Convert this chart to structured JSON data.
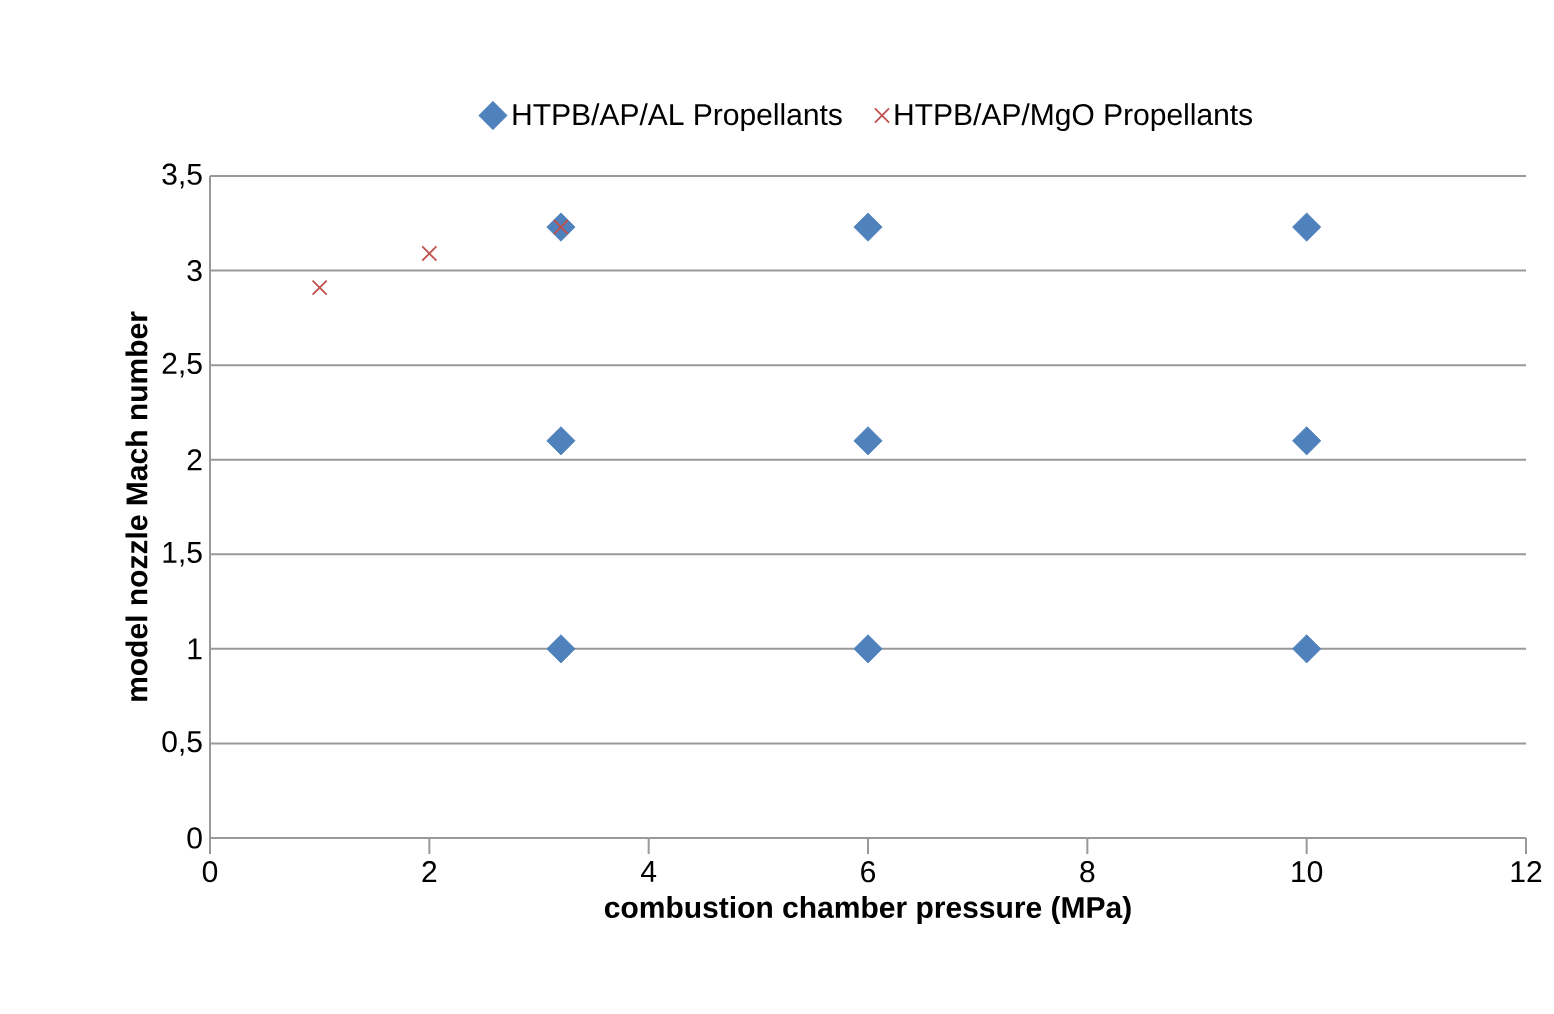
{
  "chart_data": {
    "type": "scatter",
    "xlabel": "combustion chamber pressure (MPa)",
    "ylabel": "model nozzle Mach number",
    "xlim": [
      0,
      12
    ],
    "xticks": [
      0,
      2,
      4,
      6,
      8,
      10,
      12
    ],
    "ylim": [
      0,
      3.5
    ],
    "yticks": [
      0,
      {
        "value": 0.5,
        "label": "0,5"
      },
      1,
      {
        "value": 1.5,
        "label": "1,5"
      },
      2,
      {
        "value": 2.5,
        "label": "2,5"
      },
      3,
      {
        "value": 3.5,
        "label": "3,5"
      }
    ],
    "grid": "y",
    "legend": "top",
    "series": [
      {
        "name": "HTPB/AP/AL Propellants",
        "color": "#4f81bd",
        "marker": "diamond",
        "x": [
          3.2,
          6,
          10,
          3.2,
          6,
          10,
          3.2,
          6,
          10
        ],
        "values": [
          1,
          1,
          1,
          2.1,
          2.1,
          2.1,
          3.23,
          3.23,
          3.23
        ]
      },
      {
        "name": "HTPB/AP/MgO Propellants",
        "color": "#c0504d",
        "marker": "cross",
        "x": [
          1,
          2,
          3.2
        ],
        "values": [
          2.91,
          3.09,
          3.23
        ]
      }
    ]
  }
}
